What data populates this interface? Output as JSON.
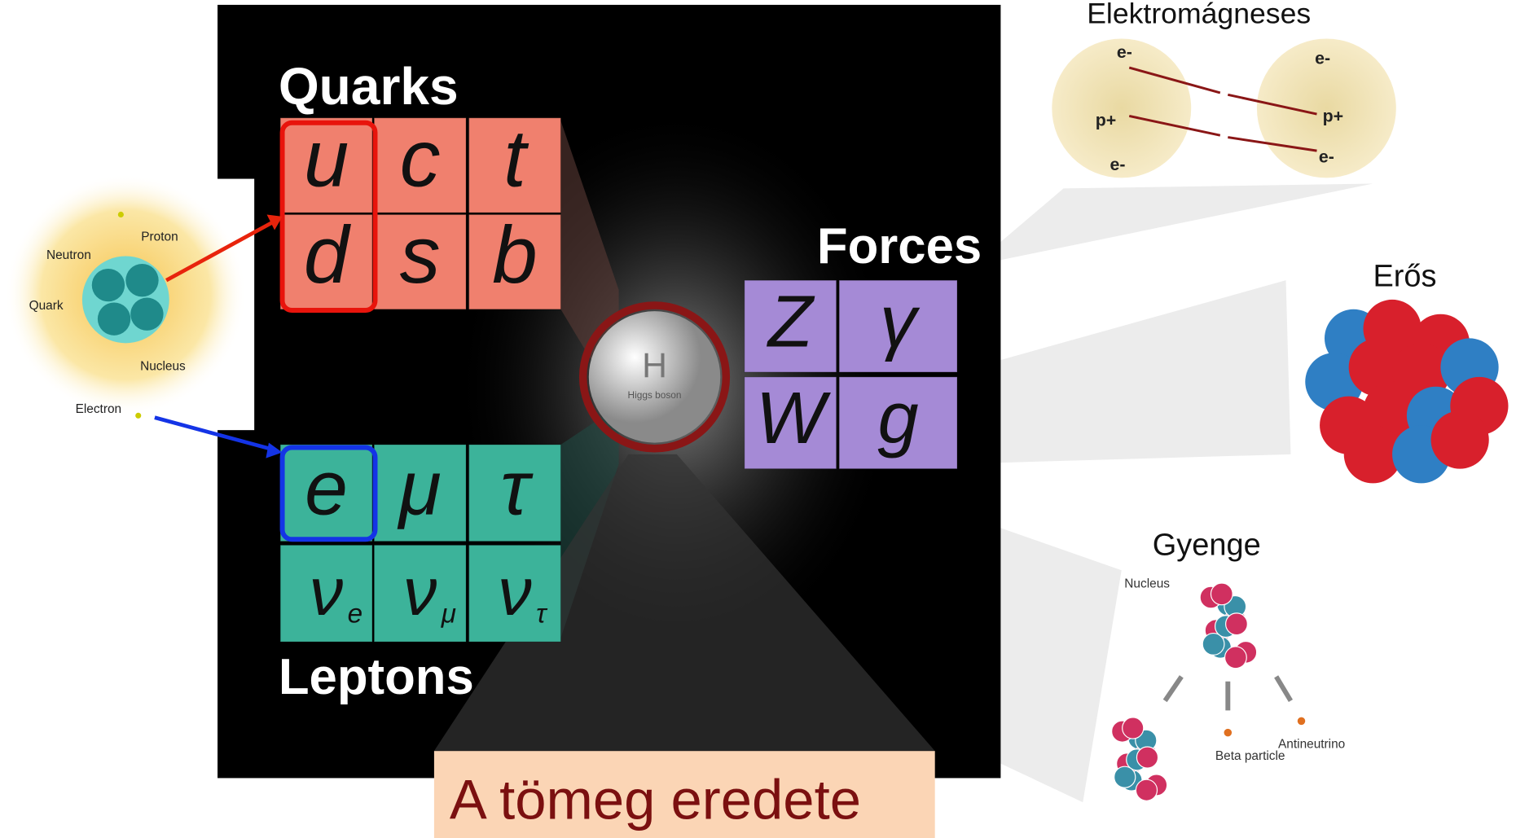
{
  "diagram": {
    "quarks": {
      "title": "Quarks",
      "symbols": [
        "u",
        "c",
        "t",
        "d",
        "s",
        "b"
      ]
    },
    "leptons": {
      "title": "Leptons",
      "symbols": [
        "e",
        "μ",
        "τ",
        "ν",
        "ν",
        "ν"
      ],
      "subscripts": [
        "e",
        "μ",
        "τ"
      ]
    },
    "forces": {
      "title": "Forces",
      "symbols": [
        "Z",
        "γ",
        "W",
        "g"
      ]
    },
    "higgs": {
      "symbol": "H",
      "label": "Higgs boson"
    },
    "atom": {
      "labels": [
        "Neutron",
        "Proton",
        "Quark",
        "Nucleus",
        "Electron"
      ]
    },
    "electromagnetic": {
      "title": "Elektromágneses",
      "charges": [
        "e-",
        "e-",
        "p+",
        "p+",
        "e-",
        "e-"
      ]
    },
    "strong": {
      "title": "Erős"
    },
    "weak": {
      "title": "Gyenge",
      "labels": [
        "Nucleus",
        "Beta particle",
        "Antineutrino"
      ]
    },
    "caption": "A tömeg eredete"
  }
}
